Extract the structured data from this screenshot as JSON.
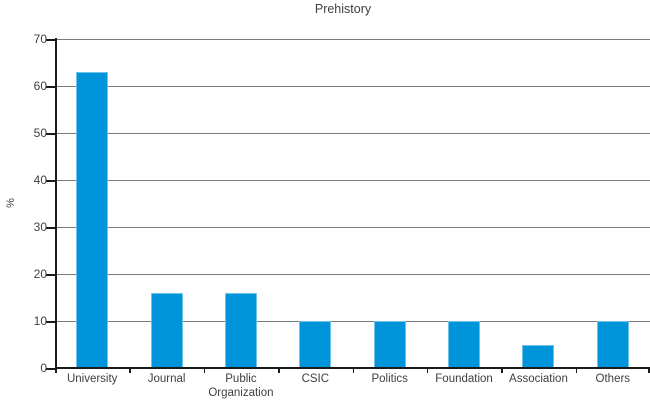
{
  "chart_data": {
    "type": "bar",
    "title": "Prehistory",
    "categories": [
      "University",
      "Journal",
      "Public Organization",
      "CSIC",
      "Politics",
      "Foundation",
      "Association",
      "Others"
    ],
    "values": [
      63,
      16,
      16,
      10,
      10,
      10,
      5,
      10
    ],
    "xlabel": "",
    "ylabel": "%",
    "ylim": [
      0,
      70
    ],
    "yticks": [
      0,
      10,
      20,
      30,
      40,
      50,
      60,
      70
    ],
    "grid": "horizontal",
    "legend_position": "none",
    "colors": {
      "bar": "#0095da",
      "bar_edge": "#6fc1ea",
      "gridline": "#7a7a7a",
      "axis": "#1a1a1a",
      "text": "#3f3f3f"
    }
  }
}
